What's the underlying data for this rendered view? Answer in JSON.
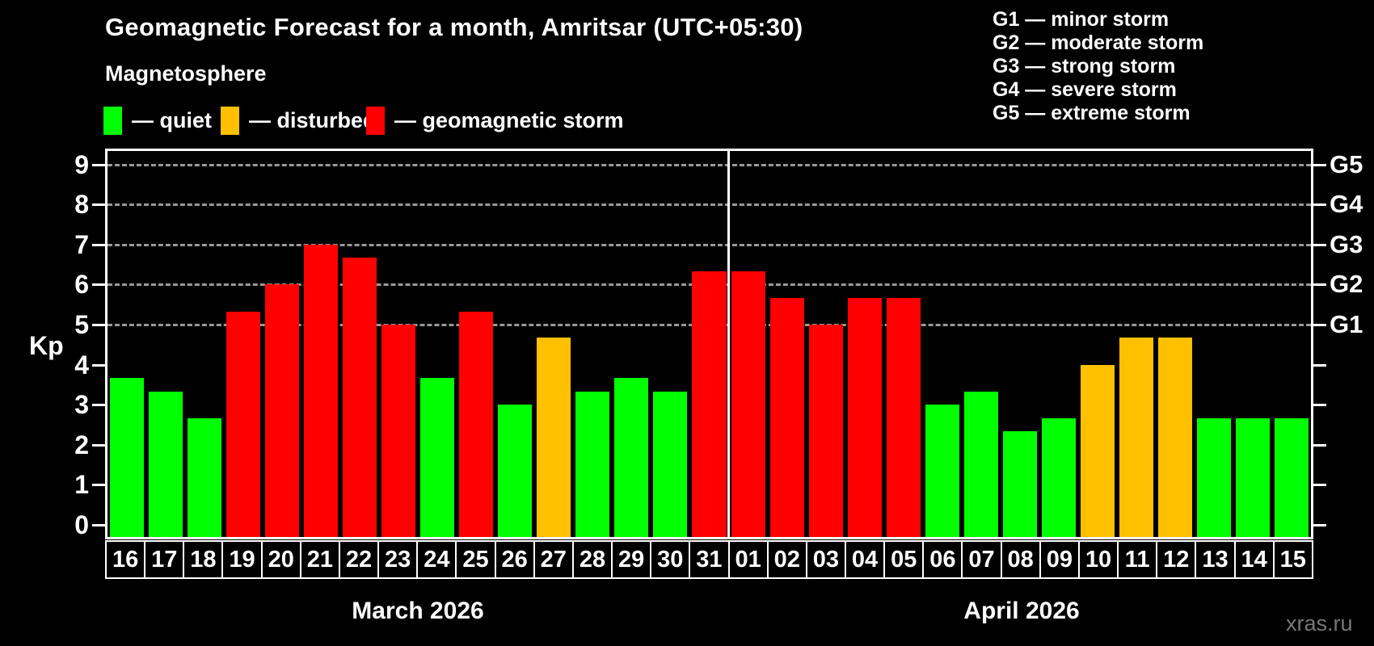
{
  "watermark": "xras.ru",
  "chart_data": {
    "type": "bar",
    "title": "Geomagnetic Forecast for a month, Amritsar (UTC+05:30)",
    "subtitle": "Magnetosphere",
    "ylabel": "Kp",
    "ylim": [
      0,
      9
    ],
    "yticks": [
      0,
      1,
      2,
      3,
      4,
      5,
      6,
      7,
      8,
      9
    ],
    "grid": "dashed horizontal lines at Kp 5-9 only",
    "legend_position": "top-left",
    "legend": [
      {
        "key": "quiet",
        "label": "— quiet"
      },
      {
        "key": "disturbed",
        "label": "— disturbed"
      },
      {
        "key": "storm",
        "label": "— geomagnetic storm"
      }
    ],
    "g_levels": [
      {
        "code": "G1",
        "kp": 5,
        "label": "G1 — minor storm"
      },
      {
        "code": "G2",
        "kp": 6,
        "label": "G2 — moderate storm"
      },
      {
        "code": "G3",
        "kp": 7,
        "label": "G3 — strong storm"
      },
      {
        "code": "G4",
        "kp": 8,
        "label": "G4 — severe storm"
      },
      {
        "code": "G5",
        "kp": 9,
        "label": "G5 — extreme storm"
      }
    ],
    "months": [
      {
        "label": "March 2026",
        "days": 16
      },
      {
        "label": "April 2026",
        "days": 15
      }
    ],
    "categories": [
      "16",
      "17",
      "18",
      "19",
      "20",
      "21",
      "22",
      "23",
      "24",
      "25",
      "26",
      "27",
      "28",
      "29",
      "30",
      "31",
      "01",
      "02",
      "03",
      "04",
      "05",
      "06",
      "07",
      "08",
      "09",
      "10",
      "11",
      "12",
      "13",
      "14",
      "15"
    ],
    "values": [
      3.67,
      3.33,
      2.67,
      5.33,
      6,
      7,
      6.67,
      5,
      3.67,
      5.33,
      3,
      4.67,
      3.33,
      3.67,
      3.33,
      6.33,
      6.33,
      5.67,
      5,
      5.67,
      5.67,
      3,
      3.33,
      2.33,
      2.67,
      4,
      4.67,
      4.67,
      2.67,
      2.67,
      2.67
    ],
    "levels": [
      "quiet",
      "quiet",
      "quiet",
      "storm",
      "storm",
      "storm",
      "storm",
      "storm",
      "quiet",
      "storm",
      "quiet",
      "disturbed",
      "quiet",
      "quiet",
      "quiet",
      "storm",
      "storm",
      "storm",
      "storm",
      "storm",
      "storm",
      "quiet",
      "quiet",
      "quiet",
      "quiet",
      "disturbed",
      "disturbed",
      "disturbed",
      "quiet",
      "quiet",
      "quiet"
    ],
    "colors": {
      "quiet": "#00ff00",
      "disturbed": "#ffc000",
      "storm": "#ff0000",
      "background": "#000000",
      "text": "#ffffff",
      "grid": "#999999",
      "month_separator": "#ffffff",
      "watermark": "#777777"
    }
  }
}
